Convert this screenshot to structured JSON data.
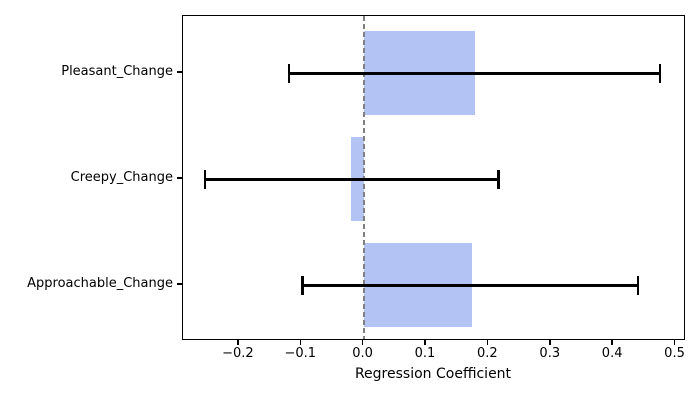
{
  "chart_data": {
    "type": "bar",
    "orientation": "horizontal",
    "title": "",
    "xlabel": "Regression Coefficient",
    "ylabel": "",
    "categories": [
      "Pleasant_Change",
      "Creepy_Change",
      "Approachable_Change"
    ],
    "values": [
      0.178,
      -0.02,
      0.173
    ],
    "ci_low": [
      -0.12,
      -0.254,
      -0.098
    ],
    "ci_high": [
      0.475,
      0.216,
      0.44
    ],
    "xlim": [
      -0.2896,
      0.5136
    ],
    "xticks": [
      -0.2,
      -0.1,
      0.0,
      0.1,
      0.2,
      0.3,
      0.4,
      0.5
    ],
    "xtick_labels": [
      "−0.2",
      "−0.1",
      "0.0",
      "0.1",
      "0.2",
      "0.3",
      "0.4",
      "0.5"
    ],
    "grid": false,
    "legend": null,
    "zero_line": {
      "x": 0,
      "style": "dashed",
      "color": "#808080"
    },
    "colors": {
      "bar": "#b3c3f3",
      "error": "#000000",
      "spine": "#000000",
      "text": "#000000",
      "background": "#ffffff"
    }
  }
}
